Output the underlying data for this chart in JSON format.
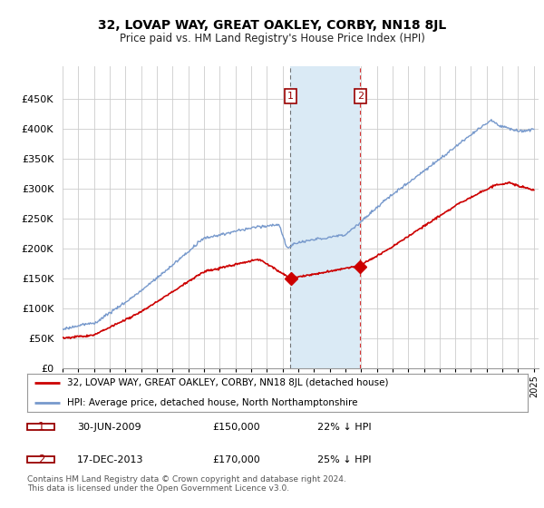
{
  "title": "32, LOVAP WAY, GREAT OAKLEY, CORBY, NN18 8JL",
  "subtitle": "Price paid vs. HM Land Registry's House Price Index (HPI)",
  "legend_line1": "32, LOVAP WAY, GREAT OAKLEY, CORBY, NN18 8JL (detached house)",
  "legend_line2": "HPI: Average price, detached house, North Northamptonshire",
  "transaction1_date": "30-JUN-2009",
  "transaction1_price": "£150,000",
  "transaction1_hpi": "22% ↓ HPI",
  "transaction2_date": "17-DEC-2013",
  "transaction2_price": "£170,000",
  "transaction2_hpi": "25% ↓ HPI",
  "footer": "Contains HM Land Registry data © Crown copyright and database right 2024.\nThis data is licensed under the Open Government Licence v3.0.",
  "red_color": "#cc0000",
  "blue_color": "#7799cc",
  "shading_color": "#daeaf5",
  "ylim_max": 500000,
  "yticks": [
    0,
    50000,
    100000,
    150000,
    200000,
    250000,
    300000,
    350000,
    400000,
    450000
  ],
  "transaction1_year": 2009.5,
  "transaction2_year": 2013.95,
  "transaction1_price_val": 150000,
  "transaction2_price_val": 170000
}
